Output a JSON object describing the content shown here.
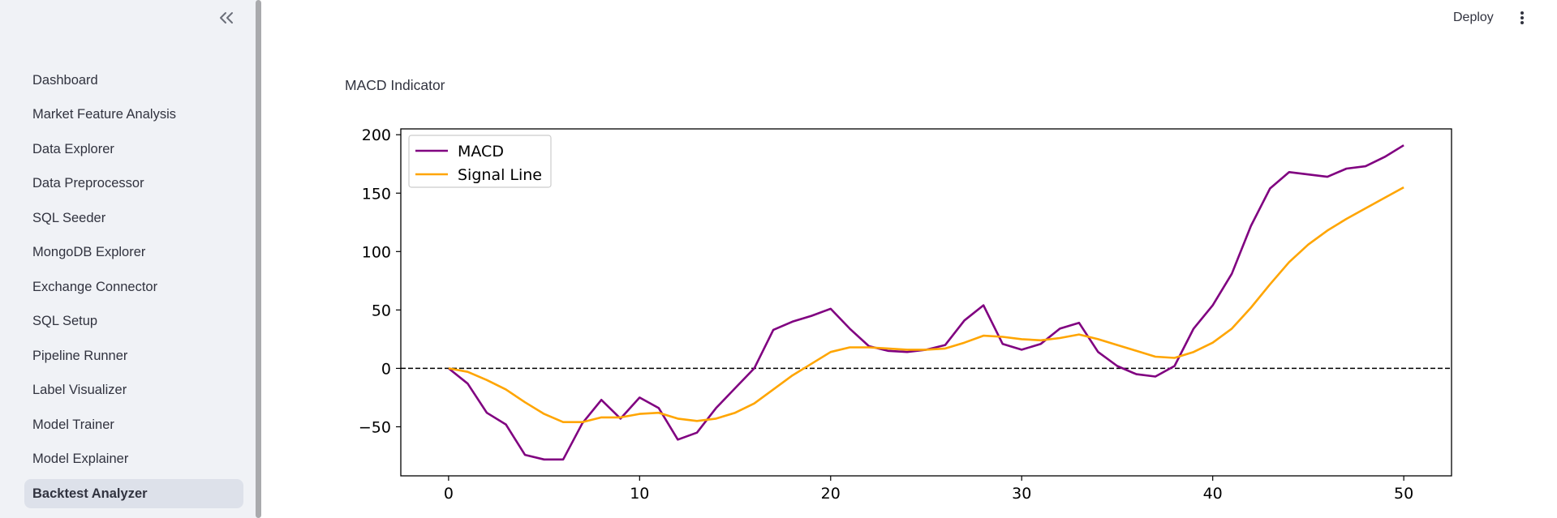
{
  "sidebar": {
    "items": [
      {
        "label": "Dashboard"
      },
      {
        "label": "Market Feature Analysis"
      },
      {
        "label": "Data Explorer"
      },
      {
        "label": "Data Preprocessor"
      },
      {
        "label": "SQL Seeder"
      },
      {
        "label": "MongoDB Explorer"
      },
      {
        "label": "Exchange Connector"
      },
      {
        "label": "SQL Setup"
      },
      {
        "label": "Pipeline Runner"
      },
      {
        "label": "Label Visualizer"
      },
      {
        "label": "Model Trainer"
      },
      {
        "label": "Model Explainer"
      },
      {
        "label": "Backtest Analyzer"
      }
    ],
    "active_item": "Backtest Analyzer"
  },
  "header": {
    "deploy_label": "Deploy"
  },
  "main": {
    "chart_title": "MACD Indicator"
  },
  "chart_data": {
    "type": "line",
    "title": "",
    "xlabel": "",
    "ylabel": "",
    "xlim": [
      -2.5,
      52.5
    ],
    "ylim": [
      -92,
      205
    ],
    "xticks": [
      0,
      10,
      20,
      30,
      40,
      50
    ],
    "yticks": [
      -50,
      0,
      50,
      100,
      150,
      200
    ],
    "legend": "top-left",
    "grid": false,
    "reference_line": {
      "y": 0,
      "style": "dashed",
      "color": "#000000"
    },
    "x": [
      0,
      1,
      2,
      3,
      4,
      5,
      6,
      7,
      8,
      9,
      10,
      11,
      12,
      13,
      14,
      15,
      16,
      17,
      18,
      19,
      20,
      21,
      22,
      23,
      24,
      25,
      26,
      27,
      28,
      29,
      30,
      31,
      32,
      33,
      34,
      35,
      36,
      37,
      38,
      39,
      40,
      41,
      42,
      43,
      44,
      45,
      46,
      47,
      48,
      49,
      50
    ],
    "series": [
      {
        "name": "MACD",
        "color": "#800080",
        "values": [
          0,
          -13,
          -38,
          -48,
          -74,
          -78,
          -78,
          -47,
          -27,
          -43,
          -25,
          -34,
          -61,
          -55,
          -34,
          -17,
          0,
          33,
          40,
          45,
          51,
          34,
          19,
          15,
          14,
          16,
          20,
          41,
          54,
          21,
          16,
          21,
          34,
          39,
          14,
          2,
          -5,
          -7,
          2,
          34,
          54,
          81,
          122,
          154,
          168,
          166,
          164,
          171,
          173,
          181,
          191
        ]
      },
      {
        "name": "Signal Line",
        "color": "#ffa500",
        "values": [
          0,
          -3,
          -10,
          -18,
          -29,
          -39,
          -46,
          -46,
          -42,
          -42,
          -39,
          -38,
          -43,
          -45,
          -43,
          -38,
          -30,
          -18,
          -6,
          4,
          14,
          18,
          18,
          17,
          16,
          16,
          17,
          22,
          28,
          27,
          25,
          24,
          26,
          29,
          25,
          20,
          15,
          10,
          9,
          14,
          22,
          34,
          52,
          72,
          91,
          106,
          118,
          128,
          137,
          146,
          155
        ]
      }
    ]
  }
}
